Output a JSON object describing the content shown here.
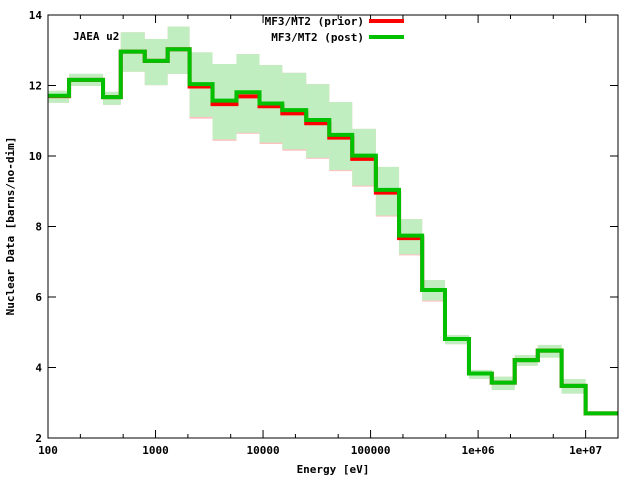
{
  "chart_data": {
    "type": "line",
    "style": "step",
    "xscale": "log",
    "xlabel": "Energy [eV]",
    "ylabel": "Nuclear Data [barns/no-dim]",
    "annotation": "JAEA u2",
    "xlim": [
      100,
      20000000
    ],
    "ylim": [
      2,
      14
    ],
    "xticks": [
      100,
      1000,
      10000,
      100000,
      1000000,
      10000000
    ],
    "xtick_labels": [
      "100",
      "1000",
      "10000",
      "100000",
      "1e+06",
      "1e+07"
    ],
    "yticks": [
      2,
      4,
      6,
      8,
      10,
      12,
      14
    ],
    "ytick_labels": [
      "2",
      "4",
      "6",
      "8",
      "10",
      "12",
      "14"
    ],
    "grid": false,
    "legend_position": "top-center",
    "bin_edges": [
      100,
      157,
      325,
      475,
      794,
      1297,
      2075,
      3390,
      5660,
      9270,
      15100,
      25200,
      41300,
      67500,
      112000,
      184000,
      302000,
      492000,
      822000,
      1340000,
      2190000,
      3590000,
      5980000,
      10000000,
      20000000
    ],
    "series": [
      {
        "name": "MF3/MT2 (prior)",
        "color": "#ff0000",
        "band_color": "#ffc0c0",
        "values": [
          11.7,
          12.16,
          11.67,
          12.96,
          12.7,
          13.03,
          11.97,
          11.47,
          11.69,
          11.41,
          11.21,
          10.93,
          10.52,
          9.92,
          8.96,
          7.67,
          6.2,
          4.81,
          3.83,
          3.57,
          4.21,
          4.48,
          3.48,
          2.7
        ],
        "band_lower": [
          11.51,
          11.99,
          11.45,
          12.39,
          12.01,
          12.33,
          11.06,
          10.43,
          10.63,
          10.34,
          10.15,
          9.92,
          9.57,
          9.13,
          8.28,
          7.18,
          5.87,
          4.66,
          3.68,
          3.36,
          4.05,
          4.28,
          3.26,
          2.66
        ],
        "band_upper": [
          11.85,
          12.33,
          11.82,
          13.51,
          13.32,
          13.67,
          12.94,
          12.61,
          12.89,
          12.58,
          12.36,
          12.04,
          11.53,
          10.77,
          9.69,
          8.21,
          6.48,
          4.92,
          3.93,
          3.74,
          4.35,
          4.64,
          3.67,
          2.74
        ]
      },
      {
        "name": "MF3/MT2 (post)",
        "color": "#00c000",
        "band_color": "#c0eec0",
        "values": [
          11.71,
          12.16,
          11.67,
          12.96,
          12.7,
          13.03,
          12.04,
          11.57,
          11.81,
          11.49,
          11.3,
          11.02,
          10.6,
          10.01,
          9.04,
          7.74,
          6.2,
          4.81,
          3.83,
          3.57,
          4.21,
          4.48,
          3.48,
          2.7
        ],
        "band_lower": [
          11.51,
          11.99,
          11.45,
          12.39,
          12.01,
          12.33,
          11.11,
          10.47,
          10.66,
          10.38,
          10.19,
          9.95,
          9.6,
          9.16,
          8.31,
          7.21,
          5.9,
          4.66,
          3.68,
          3.36,
          4.05,
          4.28,
          3.26,
          2.66
        ],
        "band_upper": [
          11.85,
          12.33,
          11.82,
          13.51,
          13.32,
          13.67,
          12.94,
          12.61,
          12.89,
          12.58,
          12.36,
          12.04,
          11.53,
          10.77,
          9.69,
          8.21,
          6.48,
          4.92,
          3.93,
          3.74,
          4.35,
          4.64,
          3.67,
          2.74
        ]
      }
    ]
  }
}
